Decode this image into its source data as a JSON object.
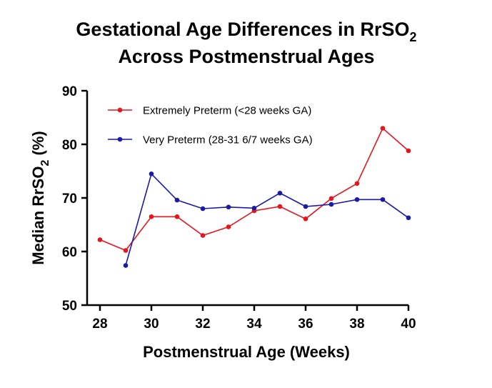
{
  "chart_data": {
    "type": "line",
    "title_line1": "Gestational Age Differences in RrSO",
    "title_line1_sub": "2",
    "title_line2": "Across Postmenstrual Ages",
    "xlabel": "Postmenstrual Age (Weeks)",
    "ylabel_main": "Median RrSO",
    "ylabel_sub": "2",
    "ylabel_suffix": " (%)",
    "xlim": [
      27.5,
      40
    ],
    "ylim": [
      50,
      90
    ],
    "xticks": [
      28,
      30,
      32,
      34,
      36,
      38,
      40
    ],
    "yticks": [
      50,
      60,
      70,
      80,
      90
    ],
    "legend_position": "top-left",
    "series": [
      {
        "name": "Extremely Preterm (<28 weeks GA)",
        "color": "#e8141c",
        "x": [
          28,
          29,
          30,
          31,
          32,
          33,
          34,
          35,
          36,
          37,
          38,
          39,
          40
        ],
        "y": [
          62.2,
          60.2,
          66.5,
          66.5,
          63.0,
          64.6,
          67.6,
          68.4,
          66.1,
          69.9,
          72.7,
          83.0,
          78.8
        ]
      },
      {
        "name": "Very Preterm (28-31 6/7 weeks GA)",
        "color": "#1a1aa6",
        "x": [
          29,
          30,
          31,
          32,
          33,
          34,
          35,
          36,
          37,
          38,
          39,
          40
        ],
        "y": [
          57.4,
          74.5,
          69.6,
          68.0,
          68.3,
          68.1,
          70.9,
          68.4,
          68.8,
          69.7,
          69.7,
          66.3
        ]
      }
    ]
  }
}
